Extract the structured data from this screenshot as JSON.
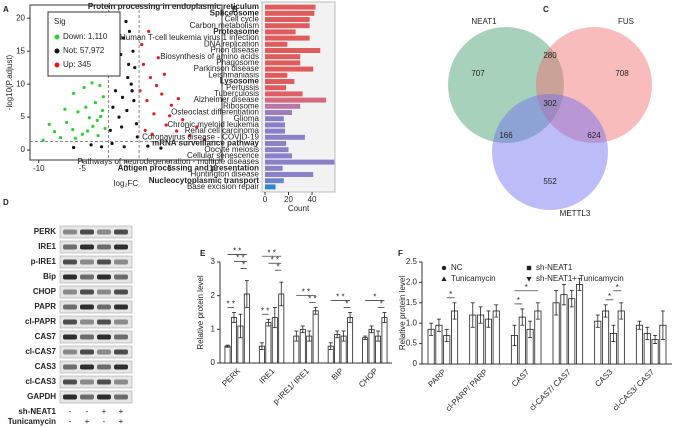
{
  "chart_data": [
    {
      "panel": "A",
      "type": "scatter",
      "ylabel": "-log10(P.adjust)",
      "xlabel": "log₂FC",
      "legend_title": "Sig",
      "xlim": [
        -11,
        11
      ],
      "ylim": [
        -1.5,
        22
      ],
      "xticks": [
        -10,
        -5,
        0,
        5,
        10
      ],
      "yticks": [
        0,
        5,
        10,
        15,
        20
      ],
      "vlines": [
        -2,
        1.5
      ],
      "hline": 1.3,
      "series": [
        {
          "name": "Down: 1,110",
          "color": "#33cc33",
          "x": [
            -9.5,
            -8.2,
            -7.5,
            -6.8,
            -6.1,
            -5.5,
            -5,
            -4.6,
            -4.2,
            -3.8,
            -3.5,
            -3.2,
            -2.9,
            -2.6,
            -2.4,
            -7,
            -6,
            -4.8,
            -3.9,
            -3,
            -5.8,
            -4.4,
            -3.3,
            -2.7,
            -8.8
          ],
          "values": [
            1.5,
            2.8,
            1.9,
            4.2,
            3.1,
            5.8,
            2.4,
            6.5,
            4.9,
            3.6,
            7.2,
            2.2,
            5.1,
            8.1,
            3.3,
            6.2,
            8.6,
            9.5,
            10.2,
            9.8,
            1.8,
            2.9,
            4.5,
            6,
            3.9
          ]
        },
        {
          "name": "Not: 57,972",
          "color": "#111111",
          "x": [
            -1.8,
            -1.5,
            -1.2,
            -0.9,
            -0.6,
            -0.3,
            0,
            0.3,
            0.6,
            0.9,
            1.2,
            -1.6,
            -1,
            -0.4,
            0.2,
            0.8,
            1.3,
            -0.8,
            0.4,
            -0.2,
            0.1,
            -1.3,
            1,
            -0.5,
            0.7,
            -2.8,
            -4,
            -6,
            2.5,
            4
          ],
          "values": [
            3,
            6.5,
            9,
            12,
            14.5,
            17,
            19.5,
            13,
            10,
            7.5,
            4,
            1,
            16,
            8,
            11,
            15,
            2,
            5,
            18,
            0.5,
            6,
            11.5,
            12.5,
            3.5,
            9,
            0.5,
            0.8,
            0.4,
            0.6,
            0.3
          ]
        },
        {
          "name": "Up: 345",
          "color": "#e31a1c",
          "x": [
            1.6,
            2,
            2.4,
            2.8,
            3.2,
            3.7,
            4.1,
            4.6,
            5.2,
            5.8,
            6.5,
            7.3,
            8.1,
            9,
            2.2,
            3,
            3.5,
            4.4,
            5,
            6,
            1.8,
            2.6
          ],
          "values": [
            9,
            13,
            7.5,
            11,
            5.5,
            14,
            8.5,
            3.8,
            6.8,
            2.9,
            4.6,
            2.2,
            3.5,
            1.6,
            3,
            2.4,
            9.8,
            11.5,
            5.2,
            7.8,
            16,
            18
          ]
        }
      ]
    },
    {
      "panel": "B",
      "type": "barh",
      "xlabel": "Count",
      "xlim": [
        0,
        57
      ],
      "xticks": [
        0,
        20,
        40
      ],
      "categories": [
        "Protein processing in endoplasmic reticulum",
        "Spliceosome",
        "Cell cycle",
        "Carbon metabolism",
        "Proteasome",
        "Human T-cell leukemia virus 1 infection",
        "DNA replication",
        "Prion disease",
        "Biosynthesis of amino acids",
        "Phagosome",
        "Parkinson disease",
        "Leishmaniasis",
        "Lysosome",
        "Pertussis",
        "Tuberculosis",
        "Alzheimer disease",
        "Ribosome",
        "Osteoclast differentiation",
        "Glioma",
        "Chronic myeloid leukemia",
        "Renal cell carcinoma",
        "Coronavirus disease - COVID-19",
        "mRNA surveillance pathway",
        "Oocyte meiosis",
        "Cellular senescence",
        "Pathways of neurodegeneration - multiple diseases",
        "Antigen processing and presentation",
        "Huntington disease",
        "Nucleocytoplasmic transport",
        "Base excision repair"
      ],
      "values": [
        43,
        42,
        38,
        38,
        26,
        38,
        19,
        47,
        30,
        30,
        41,
        19,
        25,
        18,
        32,
        52,
        30,
        23,
        16,
        17,
        17,
        34,
        18,
        20,
        23,
        59,
        15,
        41,
        16,
        9
      ],
      "bold": [
        true,
        true,
        false,
        false,
        true,
        false,
        false,
        false,
        false,
        false,
        false,
        false,
        true,
        false,
        false,
        false,
        false,
        false,
        false,
        false,
        false,
        false,
        true,
        false,
        false,
        false,
        true,
        false,
        true,
        false
      ],
      "colors": [
        "#e05c5c",
        "#e05c5c",
        "#e05c5c",
        "#e05c5c",
        "#e05c5c",
        "#e05c5c",
        "#e05c5c",
        "#e05c5c",
        "#e05c5c",
        "#e05c5c",
        "#e05c5c",
        "#e05c5c",
        "#e05c5c",
        "#e05c5c",
        "#de5f66",
        "#d46a7d",
        "#b877a8",
        "#a07bb8",
        "#8a80c8",
        "#8a80c8",
        "#8a80c8",
        "#8a80c8",
        "#8a80c8",
        "#8a80c8",
        "#8a80c8",
        "#8a80c8",
        "#8a80c8",
        "#8a80c8",
        "#6e84c9",
        "#2f86c6"
      ]
    },
    {
      "panel": "E",
      "type": "grouped_bar",
      "ylabel": "Relative protein level",
      "ylim": [
        0,
        3
      ],
      "yticks": [
        0,
        1,
        2,
        3
      ],
      "categories": [
        "PERK",
        "IRE1",
        "p-IRE1/ IRE1",
        "BIP",
        "CHOP"
      ],
      "series": [
        {
          "values": [
            0.5,
            0.5,
            0.8,
            0.5,
            0.75
          ],
          "errors": [
            0.03,
            0.1,
            0.15,
            0.1,
            0.05
          ]
        },
        {
          "values": [
            1.35,
            1.2,
            1,
            0.85,
            1
          ],
          "errors": [
            0.15,
            0.1,
            0.1,
            0.1,
            0.1
          ]
        },
        {
          "values": [
            1.1,
            1.35,
            0.8,
            0.8,
            0.8
          ],
          "errors": [
            0.35,
            0.3,
            0.15,
            0.15,
            0.15
          ]
        },
        {
          "values": [
            2.05,
            2.05,
            1.55,
            1.35,
            1.35
          ],
          "errors": [
            0.4,
            0.35,
            0.1,
            0.15,
            0.15
          ]
        }
      ],
      "annotations": [
        {
          "category": 0,
          "from": 0,
          "to": 1,
          "label": "* *"
        },
        {
          "category": 0,
          "from": 2,
          "to": 3,
          "label": "*"
        },
        {
          "category": 0,
          "from": 1,
          "to": 3,
          "label": "* *"
        },
        {
          "category": 0,
          "from": 0,
          "to": 3,
          "label": "* *"
        },
        {
          "category": 1,
          "from": 0,
          "to": 1,
          "label": "* *"
        },
        {
          "category": 1,
          "from": 2,
          "to": 3,
          "label": "*"
        },
        {
          "category": 1,
          "from": 1,
          "to": 3,
          "label": "* *"
        },
        {
          "category": 1,
          "from": 0,
          "to": 3,
          "label": "* *"
        },
        {
          "category": 2,
          "from": 2,
          "to": 3,
          "label": "* *"
        },
        {
          "category": 2,
          "from": 0,
          "to": 3,
          "label": "* *"
        },
        {
          "category": 3,
          "from": 2,
          "to": 3,
          "label": "*"
        },
        {
          "category": 3,
          "from": 0,
          "to": 3,
          "label": "* *"
        },
        {
          "category": 4,
          "from": 2,
          "to": 3,
          "label": "*"
        },
        {
          "category": 4,
          "from": 0,
          "to": 3,
          "label": "*"
        }
      ]
    },
    {
      "panel": "F",
      "type": "grouped_bar",
      "ylabel": "Relative protein level",
      "ylim": [
        0,
        2.5
      ],
      "yticks": [
        0,
        0.5,
        {
          "value": 1,
          "label": "1.0"
        },
        1.5,
        {
          "value": 2,
          "label": "2.0"
        },
        2.5
      ],
      "categories": [
        "PARP",
        "cl-PARP/ PARP",
        "CAS7",
        "cl-CAS7/ CAS7",
        "CAS3",
        "cl-CAS3/ CAS7"
      ],
      "series": [
        {
          "name": "NC",
          "marker": "circle",
          "values": [
            0.85,
            1.2,
            0.7,
            1.5,
            1.05,
            0.95
          ],
          "errors": [
            0.15,
            0.3,
            0.25,
            0.3,
            0.15,
            0.1
          ]
        },
        {
          "name": "Tunicamycin",
          "marker": "triangle",
          "values": [
            0.95,
            1.2,
            1.15,
            1.7,
            1.3,
            0.75
          ],
          "errors": [
            0.15,
            0.2,
            0.2,
            0.25,
            0.15,
            0.15
          ]
        },
        {
          "name": "sh-NEAT1",
          "marker": "square",
          "values": [
            0.7,
            1.1,
            0.85,
            1.6,
            0.75,
            0.6
          ],
          "errors": [
            0.15,
            0.2,
            0.2,
            0.2,
            0.2,
            0.1
          ]
        },
        {
          "name": "sh-NEAT1+ Tunicamycin",
          "marker": "triangle-down",
          "values": [
            1.3,
            1.3,
            1.3,
            1.95,
            1.3,
            0.95
          ],
          "errors": [
            0.2,
            0.15,
            0.2,
            0.15,
            0.2,
            0.35
          ]
        }
      ],
      "annotations": [
        {
          "category": 0,
          "from": 2,
          "to": 3,
          "label": "*"
        },
        {
          "category": 2,
          "from": 0,
          "to": 1,
          "label": "*"
        },
        {
          "category": 2,
          "from": 0,
          "to": 3,
          "label": "*"
        },
        {
          "category": 4,
          "from": 1,
          "to": 2,
          "label": "*"
        },
        {
          "category": 4,
          "from": 2,
          "to": 3,
          "label": "*"
        }
      ]
    }
  ],
  "venn": {
    "panel": "C",
    "sets": [
      {
        "name": "NEAT1",
        "color": "#3d9a6b"
      },
      {
        "name": "FUS",
        "color": "#f26b6b"
      },
      {
        "name": "METTL3",
        "color": "#6b6bf2"
      }
    ],
    "regions": {
      "neat1_only": "707",
      "fus_only": "708",
      "mettl3_only": "552",
      "neat1_fus": "280",
      "neat1_mettl3": "166",
      "fus_mettl3": "624",
      "all": "302"
    }
  },
  "blot": {
    "panel": "D",
    "rows": [
      "PERK",
      "IRE1",
      "p-IRE1",
      "Bip",
      "CHOP",
      "PAPR",
      "cl-PAPR",
      "CAS7",
      "cl-CAS7",
      "CAS3",
      "cl-CAS3",
      "GAPDH"
    ],
    "treatments": [
      {
        "name": "sh-NEAT1",
        "signs": [
          "-",
          "-",
          "+",
          "+"
        ]
      },
      {
        "name": "Tunicamycin",
        "signs": [
          "-",
          "+",
          "-",
          "+"
        ]
      }
    ]
  }
}
